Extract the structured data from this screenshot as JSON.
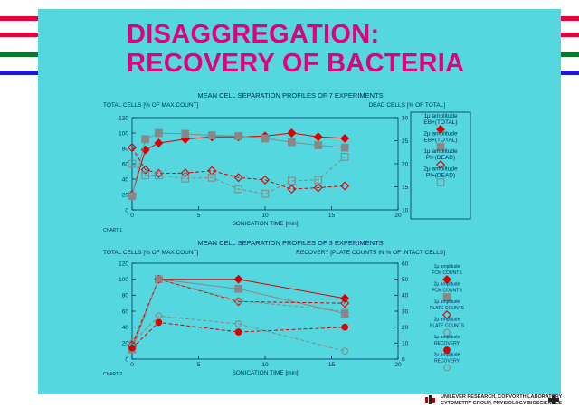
{
  "slide": {
    "title_line1": "DISAGGREGATION:",
    "title_line2": "RECOVERY OF BACTERIA",
    "footer_line1": "UNILEVER RESEARCH,   CORVORTH LABORATORY",
    "footer_line2": "CYTOMETRY GROUP, PHYSIOLOGY BIOSCIENCES",
    "colors": {
      "panel": "#55d7df",
      "title": "#e0007c",
      "red": "#dd0000",
      "gray": "#888888",
      "stripe_red": "#e8003a",
      "stripe_green": "#0a7a2a",
      "stripe_blue": "#1a1ad0"
    }
  },
  "chart_data": [
    {
      "type": "line",
      "title": "MEAN CELL SEPARATION PROFILES OF 7 EXPERIMENTS",
      "ylabel_left": "TOTAL CELLS [% OF MAX.COUNT]",
      "ylabel_right": "DEAD CELLS [% OF TOTAL]",
      "xlabel": "SONICATION TIME [min]",
      "caption": "CHART 1",
      "xlim": [
        0,
        20
      ],
      "ylim_left": [
        0,
        120
      ],
      "ylim_right": [
        10,
        30
      ],
      "x_ticks": [
        0,
        5,
        10,
        15,
        20
      ],
      "y_ticks_left": [
        0,
        20,
        40,
        60,
        80,
        100,
        120
      ],
      "y_ticks_right": [
        10,
        15,
        20,
        25,
        30
      ],
      "legend_position": "right",
      "series": [
        {
          "name": "1μ amplitude EB+(TOTAL)",
          "axis": "left",
          "color": "#dd0000",
          "marker": "diamond-filled",
          "dash": "solid",
          "x": [
            0,
            1,
            2,
            4,
            6,
            8,
            10,
            12,
            14,
            16
          ],
          "y": [
            20,
            78,
            87,
            92,
            95,
            95,
            96,
            100,
            95,
            93
          ]
        },
        {
          "name": "2μ amplitude EB+(TOTAL)",
          "axis": "left",
          "color": "#888888",
          "marker": "square-filled",
          "dash": "solid",
          "x": [
            0,
            1,
            2,
            4,
            6,
            8,
            10,
            12,
            14,
            16
          ],
          "y": [
            18,
            92,
            100,
            99,
            97,
            96,
            93,
            88,
            84,
            81
          ]
        },
        {
          "name": "1μ amplitude PI+(DEAD)",
          "axis": "right",
          "color": "#dd0000",
          "marker": "diamond-open",
          "dash": "dashed",
          "x": [
            0,
            1,
            2,
            4,
            6,
            8,
            10,
            12,
            14,
            16
          ],
          "y": [
            23.5,
            18.7,
            17.9,
            18,
            18.5,
            17,
            16.5,
            14.5,
            14.8,
            15.2
          ]
        },
        {
          "name": "2μ amplitude PI+(DEAD)",
          "axis": "right",
          "color": "#888888",
          "marker": "square-open",
          "dash": "dashed",
          "x": [
            0,
            1,
            2,
            4,
            6,
            8,
            10,
            12,
            14,
            16
          ],
          "y": [
            20,
            17.5,
            17.5,
            16.8,
            17,
            14.5,
            13.5,
            16.3,
            16.5,
            21.5
          ]
        }
      ]
    },
    {
      "type": "line",
      "title": "MEAN CELL SEPARATION PROFILES OF 3 EXPERIMENTS",
      "ylabel_left": "TOTAL CELLS [% OF MAX.COUNT]",
      "ylabel_right": "RECOVERY [PLATE COUNTS IN % OF INTACT CELLS]",
      "xlabel": "SONICATION TIME [min]",
      "caption": "CHART 2",
      "xlim": [
        0,
        20
      ],
      "ylim_left": [
        0,
        120
      ],
      "ylim_right": [
        0,
        60
      ],
      "x_ticks": [
        0,
        5,
        10,
        15,
        20
      ],
      "y_ticks_left": [
        0,
        20,
        40,
        60,
        80,
        100,
        120
      ],
      "y_ticks_right": [
        0,
        10,
        20,
        30,
        40,
        50,
        60
      ],
      "legend_position": "right",
      "series": [
        {
          "name": "1μ amplitude FCM COUNTS",
          "axis": "left",
          "color": "#dd0000",
          "marker": "diamond-filled",
          "dash": "solid",
          "x": [
            0,
            2,
            8,
            16
          ],
          "y": [
            15,
            100,
            100,
            76
          ]
        },
        {
          "name": "2μ amplitude FCM COUNTS",
          "axis": "left",
          "color": "#888888",
          "marker": "square-filled",
          "dash": "solid",
          "x": [
            0,
            2,
            8,
            16
          ],
          "y": [
            12,
            100,
            88,
            57
          ]
        },
        {
          "name": "1μ amplitude PLATE COUNTS",
          "axis": "left",
          "color": "#dd0000",
          "marker": "diamond-open",
          "dash": "dashed",
          "x": [
            0,
            2,
            8,
            16
          ],
          "y": [
            18,
            100,
            72,
            70
          ]
        },
        {
          "name": "2μ amplitude PLATE COUNTS",
          "axis": "left",
          "color": "#888888",
          "marker": "circle-open",
          "dash": "dashed",
          "x": [
            0,
            2,
            8,
            16
          ],
          "y": [
            15,
            100,
            73,
            60
          ]
        },
        {
          "name": "1μ amplitude RECOVERY",
          "axis": "right",
          "color": "#dd0000",
          "marker": "circle-filled",
          "dash": "dashed",
          "x": [
            0,
            2,
            8,
            16
          ],
          "y": [
            7,
            23,
            17,
            20
          ]
        },
        {
          "name": "2μ amplitude RECOVERY",
          "axis": "right",
          "color": "#888888",
          "marker": "circle-open",
          "dash": "dashed",
          "x": [
            0,
            2,
            8,
            16
          ],
          "y": [
            10,
            27,
            22,
            5
          ]
        }
      ]
    }
  ]
}
